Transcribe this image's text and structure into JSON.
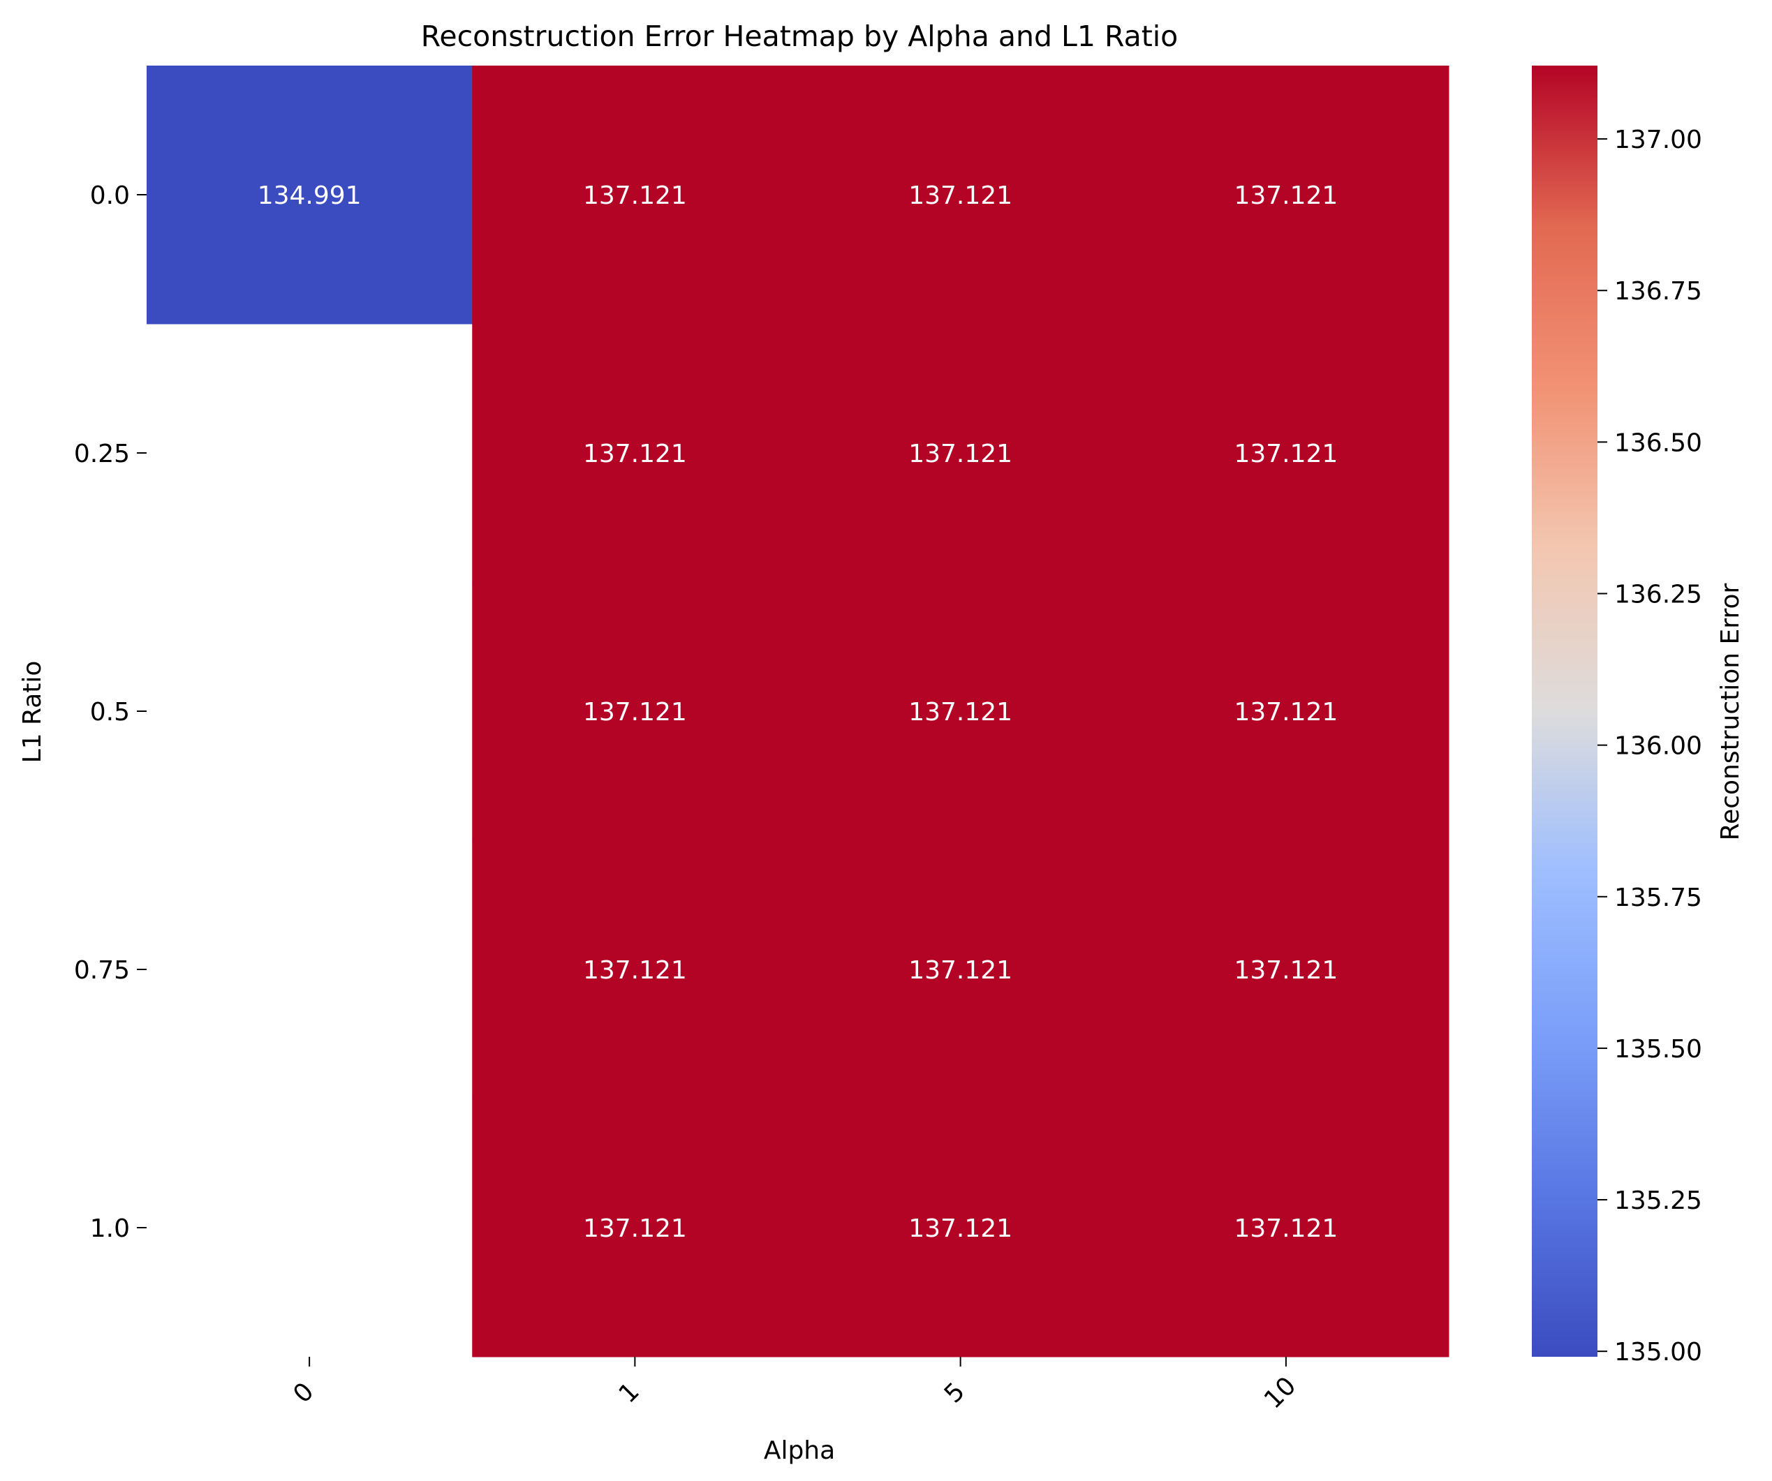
{
  "chart_data": {
    "type": "heatmap",
    "title": "Reconstruction Error Heatmap by Alpha and L1 Ratio",
    "xlabel": "Alpha",
    "ylabel": "L1 Ratio",
    "x_categories": [
      "0",
      "1",
      "5",
      "10"
    ],
    "y_categories": [
      "0.0",
      "0.25",
      "0.5",
      "0.75",
      "1.0"
    ],
    "values": [
      [
        134.991,
        137.121,
        137.121,
        137.121
      ],
      [
        null,
        137.121,
        137.121,
        137.121
      ],
      [
        null,
        137.121,
        137.121,
        137.121
      ],
      [
        null,
        137.121,
        137.121,
        137.121
      ],
      [
        null,
        137.121,
        137.121,
        137.121
      ]
    ],
    "value_format_decimals": 3,
    "colormap": "coolwarm",
    "colorbar": {
      "label": "Reconstruction Error",
      "range": [
        134.991,
        137.121
      ],
      "ticks": [
        135.0,
        135.25,
        135.5,
        135.75,
        136.0,
        136.25,
        136.5,
        136.75,
        137.0
      ],
      "tick_labels": [
        "135.00",
        "135.25",
        "135.50",
        "135.75",
        "136.00",
        "136.25",
        "136.50",
        "136.75",
        "137.00"
      ]
    },
    "x_tick_rotation": 45,
    "grid": false,
    "annotation_color": "#ffffff"
  }
}
